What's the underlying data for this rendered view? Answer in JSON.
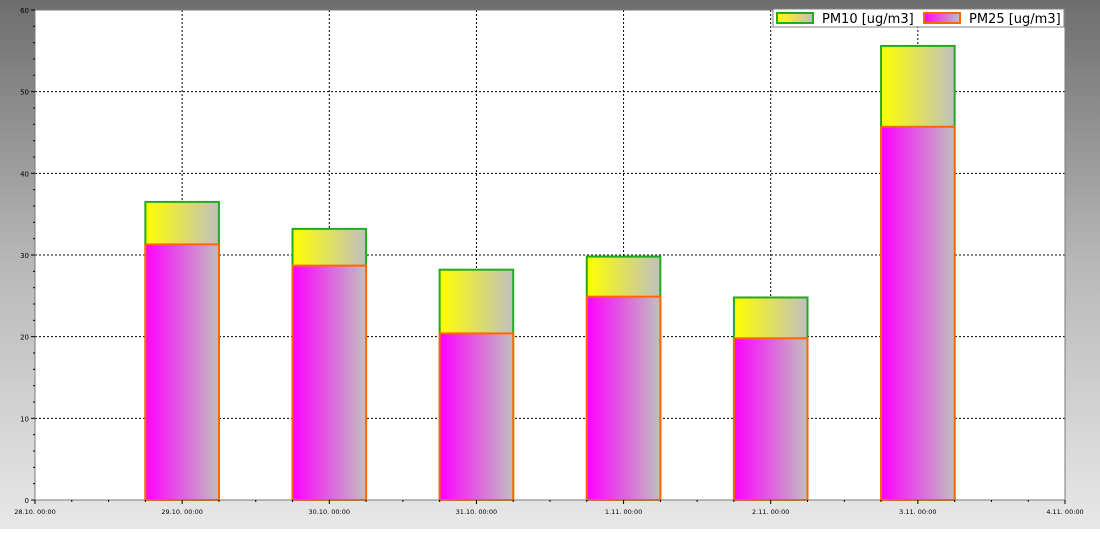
{
  "chart_data": {
    "type": "bar",
    "stacked": false,
    "overlay": true,
    "categories": [
      "29.10. 00:00",
      "30.10. 00:00",
      "31.10. 00:00",
      "1.11. 00:00",
      "2.11. 00:00",
      "3.11. 00:00"
    ],
    "x_ticks": [
      "28.10. 00:00",
      "29.10. 00:00",
      "30.10. 00:00",
      "31.10. 00:00",
      "1.11. 00:00",
      "2.11. 00:00",
      "3.11. 00:00",
      "4.11. 00:00"
    ],
    "series": [
      {
        "name": "PM10 [ug/m3]",
        "values": [
          36.5,
          33.2,
          28.2,
          29.8,
          24.8,
          55.6
        ]
      },
      {
        "name": "PM25 [ug/m3]",
        "values": [
          31.3,
          28.7,
          20.4,
          24.9,
          19.8,
          45.7
        ]
      }
    ],
    "ylim": [
      0,
      60
    ],
    "y_ticks": [
      0,
      10,
      20,
      30,
      40,
      50,
      60
    ],
    "title": "",
    "xlabel": "",
    "ylabel": "",
    "grid": true,
    "legend_position": "top-right",
    "colors": {
      "pm10_gradient_start": "#ffff00",
      "pm10_gradient_end": "#c0c0c0",
      "pm10_border": "#22aa22",
      "pm25_gradient_start": "#ff00ff",
      "pm25_gradient_end": "#c0c0c0",
      "pm25_border": "#ff6600",
      "frame_outer": "#8a8a8a",
      "frame_inner": "#ffffff",
      "grid": "#000000"
    }
  }
}
